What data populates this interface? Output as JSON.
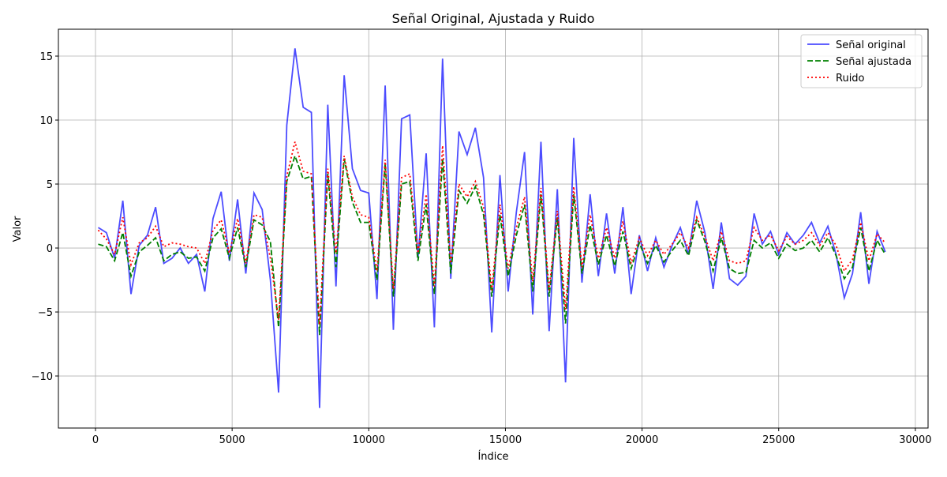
{
  "chart_data": {
    "type": "line",
    "title": "Señal Original, Ajustada y Ruido",
    "xlabel": "Índice",
    "ylabel": "Valor",
    "x": [
      100,
      400,
      700,
      1000,
      1300,
      1600,
      1900,
      2200,
      2500,
      2800,
      3100,
      3400,
      3700,
      4000,
      4300,
      4600,
      4900,
      5200,
      5500,
      5800,
      6100,
      6400,
      6700,
      7000,
      7300,
      7600,
      7900,
      8200,
      8500,
      8800,
      9100,
      9400,
      9700,
      10000,
      10300,
      10600,
      10900,
      11200,
      11500,
      11800,
      12100,
      12400,
      12700,
      13000,
      13300,
      13600,
      13900,
      14200,
      14500,
      14800,
      15100,
      15400,
      15700,
      16000,
      16300,
      16600,
      16900,
      17200,
      17500,
      17800,
      18100,
      18400,
      18700,
      19000,
      19300,
      19600,
      19900,
      20200,
      20500,
      20800,
      21100,
      21400,
      21700,
      22000,
      22300,
      22600,
      22900,
      23200,
      23500,
      23800,
      24100,
      24400,
      24700,
      25000,
      25300,
      25600,
      25900,
      26200,
      26500,
      26800,
      27100,
      27400,
      27700,
      28000,
      28300,
      28600,
      28900
    ],
    "series": [
      {
        "name": "Señal original",
        "color": "#0000ff",
        "opacity": 0.7,
        "style": "solid",
        "values": [
          1.6,
          1.2,
          -0.8,
          3.7,
          -3.6,
          0.2,
          1.0,
          3.2,
          -1.2,
          -0.8,
          0.0,
          -1.2,
          -0.5,
          -3.4,
          2.3,
          4.4,
          -1.0,
          3.8,
          -2.0,
          4.3,
          3.0,
          -2.5,
          -11.3,
          9.6,
          15.6,
          11.0,
          10.6,
          -12.5,
          11.2,
          -3.0,
          13.5,
          6.2,
          4.5,
          4.3,
          -4.0,
          12.7,
          -6.4,
          10.1,
          10.4,
          -0.8,
          7.4,
          -6.2,
          14.8,
          -2.4,
          9.1,
          7.3,
          9.4,
          5.5,
          -6.6,
          5.7,
          -3.4,
          2.8,
          7.5,
          -5.2,
          8.3,
          -6.5,
          4.6,
          -10.5,
          8.6,
          -2.7,
          4.2,
          -2.2,
          2.7,
          -2.0,
          3.2,
          -3.6,
          1.0,
          -1.8,
          0.8,
          -1.5,
          0.2,
          1.6,
          -0.5,
          3.7,
          1.2,
          -3.2,
          2.0,
          -2.4,
          -2.9,
          -2.2,
          2.7,
          0.3,
          1.3,
          -0.5,
          1.2,
          0.3,
          1.0,
          2.0,
          0.4,
          1.7,
          -0.5,
          -3.9,
          -2.0,
          2.8,
          -2.8,
          1.3,
          -0.3
        ]
      },
      {
        "name": "Señal ajustada",
        "color": "#008000",
        "opacity": 1,
        "style": "dashed",
        "values": [
          0.3,
          0.1,
          -1.0,
          1.2,
          -2.2,
          -0.3,
          0.2,
          0.8,
          -1.0,
          -0.5,
          -0.3,
          -0.8,
          -0.7,
          -1.8,
          0.8,
          1.5,
          -0.8,
          1.6,
          -1.5,
          2.2,
          1.8,
          0.5,
          -6.2,
          5.2,
          7.2,
          5.4,
          5.6,
          -6.8,
          5.8,
          -1.5,
          7.0,
          3.6,
          2.0,
          2.0,
          -2.5,
          6.6,
          -3.8,
          5.0,
          5.2,
          -1.0,
          3.4,
          -3.6,
          7.0,
          -2.0,
          4.5,
          3.5,
          4.8,
          2.6,
          -3.8,
          2.6,
          -2.2,
          1.0,
          3.4,
          -3.4,
          4.2,
          -3.8,
          2.4,
          -5.9,
          4.2,
          -2.0,
          1.8,
          -1.3,
          1.0,
          -1.4,
          1.3,
          -1.6,
          0.4,
          -1.2,
          0.2,
          -1.1,
          -0.2,
          0.6,
          -0.6,
          2.2,
          0.5,
          -1.8,
          0.8,
          -1.6,
          -2.0,
          -1.9,
          0.6,
          0.0,
          0.4,
          -0.8,
          0.3,
          -0.2,
          0.0,
          0.6,
          -0.3,
          0.8,
          -0.6,
          -2.4,
          -1.5,
          1.6,
          -1.8,
          0.6,
          -0.5
        ]
      },
      {
        "name": "Ruido",
        "color": "#ff0000",
        "opacity": 1,
        "style": "dotted",
        "values": [
          1.4,
          0.7,
          -0.5,
          2.4,
          -1.3,
          0.4,
          0.8,
          1.7,
          0.1,
          0.4,
          0.3,
          0.1,
          0.0,
          -1.2,
          1.4,
          2.2,
          -0.4,
          2.3,
          -1.2,
          2.6,
          2.4,
          -0.8,
          -5.6,
          5.6,
          8.3,
          6.0,
          5.8,
          -6.0,
          6.2,
          -0.4,
          7.2,
          4.0,
          2.6,
          2.4,
          -1.8,
          6.9,
          -3.2,
          5.5,
          5.8,
          -0.4,
          4.2,
          -3.0,
          8.0,
          -1.2,
          5.0,
          4.0,
          5.2,
          3.2,
          -3.3,
          3.4,
          -1.6,
          1.6,
          4.0,
          -2.6,
          4.7,
          -3.3,
          2.9,
          -4.8,
          4.8,
          -1.5,
          2.6,
          -0.8,
          1.6,
          -0.8,
          2.1,
          -1.2,
          0.8,
          -0.6,
          0.6,
          -0.5,
          0.3,
          1.2,
          0.0,
          2.4,
          0.9,
          -1.0,
          1.3,
          -1.0,
          -1.2,
          -1.0,
          1.6,
          0.6,
          1.0,
          -0.2,
          0.9,
          0.3,
          0.6,
          1.2,
          0.2,
          1.2,
          0.2,
          -1.8,
          -0.9,
          2.0,
          -1.0,
          1.1,
          0.4
        ]
      }
    ],
    "xlim": [
      -1357,
      30465
    ],
    "xticks": [
      0,
      5000,
      10000,
      15000,
      20000,
      25000,
      30000
    ],
    "ylim": [
      -14.07,
      17.1
    ],
    "yticks": [
      {
        "value": -10,
        "label": "−10"
      },
      {
        "value": -5,
        "label": "−5"
      },
      0,
      5,
      10,
      15
    ],
    "grid": true,
    "legend": "upper right"
  }
}
